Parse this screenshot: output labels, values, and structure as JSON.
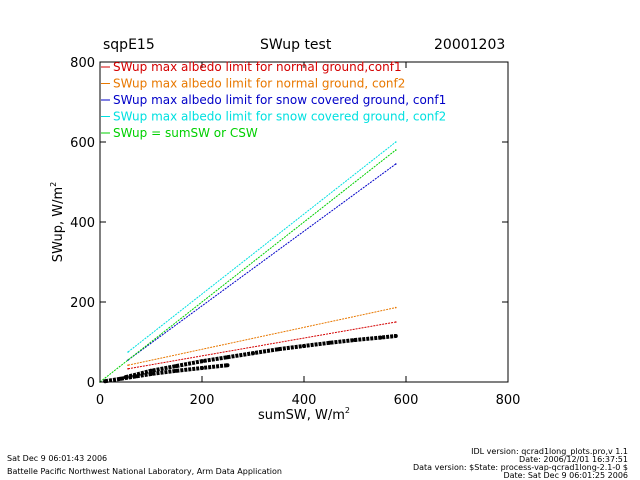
{
  "header": {
    "site": "sqpE15",
    "title": "SWup test",
    "date": "20001203"
  },
  "chart_data": {
    "type": "scatter",
    "title": "SWup test",
    "xlabel": "sumSW, W/m",
    "xlabel_sup": "2",
    "ylabel": "SWup, W/m",
    "ylabel_sup": "2",
    "xlim": [
      0,
      800
    ],
    "ylim": [
      0,
      800
    ],
    "x_ticks": [
      0,
      200,
      400,
      600,
      800
    ],
    "y_ticks": [
      0,
      200,
      400,
      600,
      800
    ],
    "grid": false,
    "legend_placement": "top-left",
    "series": [
      {
        "name": "SWup max albedo limit for normal ground,conf1",
        "color": "#d40000",
        "points": [
          [
            55,
            33
          ],
          [
            580,
            150
          ]
        ]
      },
      {
        "name": "SWup max albedo limit for normal ground, conf2",
        "color": "#e87800",
        "points": [
          [
            55,
            42
          ],
          [
            580,
            186
          ]
        ]
      },
      {
        "name": "SWup max albedo limit for snow covered ground, conf1",
        "color": "#0000c8",
        "points": [
          [
            55,
            55
          ],
          [
            580,
            545
          ]
        ]
      },
      {
        "name": "SWup max albedo limit for snow covered ground, conf2",
        "color": "#00e0e0",
        "points": [
          [
            55,
            75
          ],
          [
            580,
            600
          ]
        ]
      },
      {
        "name": "SWup = sumSW or CSW",
        "color": "#00d000",
        "points": [
          [
            0,
            0
          ],
          [
            580,
            580
          ]
        ]
      },
      {
        "name": "",
        "color": "#000000",
        "points": [
          [
            10,
            2
          ],
          [
            40,
            8
          ],
          [
            70,
            14
          ],
          [
            100,
            20
          ],
          [
            150,
            28
          ],
          [
            200,
            35
          ],
          [
            250,
            42
          ]
        ]
      },
      {
        "name": "",
        "color": "#000000",
        "points": [
          [
            50,
            12
          ],
          [
            100,
            28
          ],
          [
            150,
            40
          ],
          [
            200,
            52
          ],
          [
            250,
            62
          ],
          [
            300,
            72
          ],
          [
            350,
            82
          ],
          [
            400,
            90
          ],
          [
            450,
            98
          ],
          [
            500,
            105
          ],
          [
            550,
            111
          ],
          [
            580,
            115
          ]
        ]
      }
    ]
  },
  "footer": {
    "run_time": "Sat Dec  9 06:01:43 2006",
    "lab": "Battelle Pacific Northwest National Laboratory, Arm Data Application",
    "idl_version": "IDL version: qcrad1long_plots.pro,v 1.1",
    "file_date": "Date: 2006/12/01 16:37:51",
    "data_version": "Data version: $State: process-vap-qcrad1long-2.1-0 $",
    "data_date": "Date: Sat Dec  9 06:01:25 2006"
  }
}
